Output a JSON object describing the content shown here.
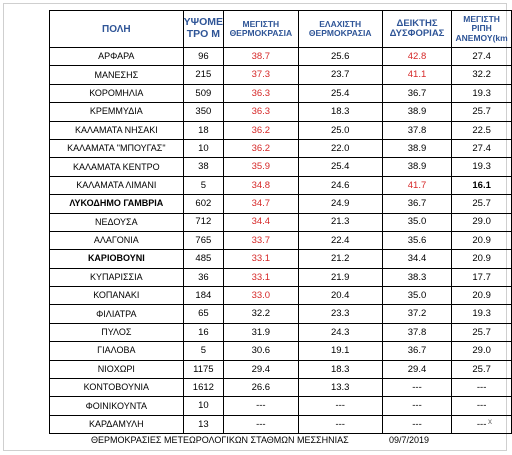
{
  "headers": {
    "city": "ΠΟΛΗ",
    "altitude": "ΥΨΟΜΕ ΤΡΟ Μ",
    "max_temp": "ΜΕΓΙΣΤΗ ΘΕΡΜΟΚΡΑΣΙΑ",
    "min_temp": "ΕΛΑΧΙΣΤΗ ΘΕΡΜΟΚΡΑΣΙΑ",
    "discomfort": "ΔΕΙΚΤΗΣ ΔΥΣΦΟΡΙΑΣ",
    "wind": "ΜΕΓΙΣΤΗ ΡΙΠΗ ΑΝΕΜΟΥ(km"
  },
  "rows": [
    {
      "city": "ΑΡΦΑΡΑ",
      "alt": "96",
      "max": "38.7",
      "min": "25.6",
      "di": "42.8",
      "wind": "27.4"
    },
    {
      "city": "ΜΑΝΕΣΗΣ",
      "alt": "215",
      "max": "37.3",
      "min": "23.7",
      "di": "41.1",
      "wind": "32.2"
    },
    {
      "city": "ΚΟΡΟΜΗΛΙΑ",
      "alt": "509",
      "max": "36.3",
      "min": "25.4",
      "di": "36.7",
      "wind": "19.3"
    },
    {
      "city": "ΚΡΕΜΜΥΔΙΑ",
      "alt": "350",
      "max": "36.3",
      "min": "18.3",
      "di": "38.9",
      "wind": "25.7"
    },
    {
      "city": "ΚΑΛΑΜΑΤΑ ΝΗΣΑΚΙ",
      "alt": "18",
      "max": "36.2",
      "min": "25.0",
      "di": "37.8",
      "wind": "22.5"
    },
    {
      "city": "ΚΑΛΑΜΑΤΑ \"ΜΠΟΥΓΑΣ\"",
      "alt": "10",
      "max": "36.2",
      "min": "22.0",
      "di": "38.9",
      "wind": "27.4"
    },
    {
      "city": "ΚΑΛΑΜΑΤΑ ΚΕΝΤΡΟ",
      "alt": "38",
      "max": "35.9",
      "min": "25.4",
      "di": "38.9",
      "wind": "19.3"
    },
    {
      "city": "ΚΑΛΑΜΑΤΑ ΛΙΜΑΝΙ",
      "alt": "5",
      "max": "34.8",
      "min": "24.6",
      "di": "41.7",
      "wind": "16.1"
    },
    {
      "city": "ΛΥΚΟΔΗΜΟ ΓΑΜΒΡΙΑ",
      "alt": "602",
      "max": "34.7",
      "min": "24.9",
      "di": "36.7",
      "wind": "25.7"
    },
    {
      "city": "ΝΕΔΟΥΣΑ",
      "alt": "712",
      "max": "34.4",
      "min": "21.3",
      "di": "35.0",
      "wind": "29.0"
    },
    {
      "city": "ΑΛΑΓΟΝΙΑ",
      "alt": "765",
      "max": "33.7",
      "min": "22.4",
      "di": "35.6",
      "wind": "20.9"
    },
    {
      "city": "ΚΑΡΙΟΒΟΥΝΙ",
      "alt": "485",
      "max": "33.1",
      "min": "21.2",
      "di": "34.4",
      "wind": "20.9"
    },
    {
      "city": "ΚΥΠΑΡΙΣΣΙΑ",
      "alt": "36",
      "max": "33.1",
      "min": "21.9",
      "di": "38.3",
      "wind": "17.7"
    },
    {
      "city": "ΚΟΠΑΝΑΚΙ",
      "alt": "184",
      "max": "33.0",
      "min": "20.4",
      "di": "35.0",
      "wind": "20.9"
    },
    {
      "city": "ΦΙΛΙΑΤΡΑ",
      "alt": "65",
      "max": "32.2",
      "min": "23.3",
      "di": "37.2",
      "wind": "19.3"
    },
    {
      "city": "ΠΥΛΟΣ",
      "alt": "16",
      "max": "31.9",
      "min": "24.3",
      "di": "37.8",
      "wind": "25.7"
    },
    {
      "city": "ΓΙΑΛΟΒΑ",
      "alt": "5",
      "max": "30.6",
      "min": "19.1",
      "di": "36.7",
      "wind": "29.0"
    },
    {
      "city": "ΝΙΟΧΩΡΙ",
      "alt": "1175",
      "max": "29.4",
      "min": "18.3",
      "di": "29.4",
      "wind": "25.7"
    },
    {
      "city": "ΚΟΝΤΟΒΟΥΝΙΑ",
      "alt": "1612",
      "max": "26.6",
      "min": "13.3",
      "di": "---",
      "wind": "---"
    },
    {
      "city": "ΦΟΙΝΙΚΟΥΝΤΑ",
      "alt": "10",
      "max": "---",
      "min": "---",
      "di": "---",
      "wind": "---"
    },
    {
      "city": "ΚΑΡΔΑΜΥΛΗ",
      "alt": "13",
      "max": "---",
      "min": "---",
      "di": "---",
      "wind": "---"
    }
  ],
  "footer": {
    "caption": "ΘΕΡΜΟΚΡΑΣΙΕΣ ΜΕΤΕΩΡΟΛΟΓΙΚΩΝ ΣΤΑΘΜΩΝ ΜΕΣΣΗΝΙΑΣ",
    "date": "09/7/2019"
  },
  "corner_mark": "x",
  "colors": {
    "header_blue": "#2f5597",
    "highlight_red": "#d62828"
  }
}
